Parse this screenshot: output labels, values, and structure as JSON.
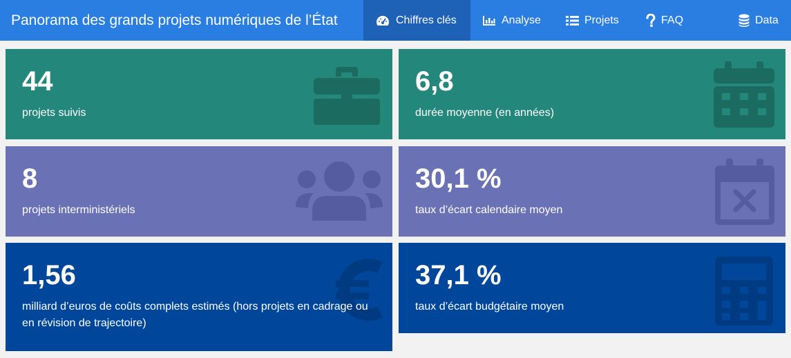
{
  "header": {
    "title": "Panorama des grands projets numériques de l’État",
    "nav": [
      {
        "label": "Chiffres clés",
        "icon": "dashboard-icon",
        "active": true
      },
      {
        "label": "Analyse",
        "icon": "bar-chart-icon",
        "active": false
      },
      {
        "label": "Projets",
        "icon": "list-icon",
        "active": false
      },
      {
        "label": "FAQ",
        "icon": "question-icon",
        "active": false
      },
      {
        "label": "Data",
        "icon": "database-icon",
        "active": false
      }
    ]
  },
  "stats": [
    {
      "value": "44",
      "label": "projets suivis",
      "icon": "briefcase-icon",
      "color": "#23877b"
    },
    {
      "value": "6,8",
      "label": "durée moyenne (en années)",
      "icon": "calendar-icon",
      "color": "#23877b"
    },
    {
      "value": "8",
      "label": "projets interministériels",
      "icon": "users-icon",
      "color": "#6a71b5"
    },
    {
      "value": "30,1 %",
      "label": "taux d’écart calendaire moyen",
      "icon": "calendar-times-icon",
      "color": "#6a71b5"
    },
    {
      "value": "1,56",
      "label": "milliard d’euros de coûts complets estimés (hors projets en cadrage ou en révision de trajectoire)",
      "icon": "euro-icon",
      "color": "#00479c"
    },
    {
      "value": "37,1 %",
      "label": "taux d’écart budgétaire moyen",
      "icon": "calculator-icon",
      "color": "#00479c"
    }
  ]
}
